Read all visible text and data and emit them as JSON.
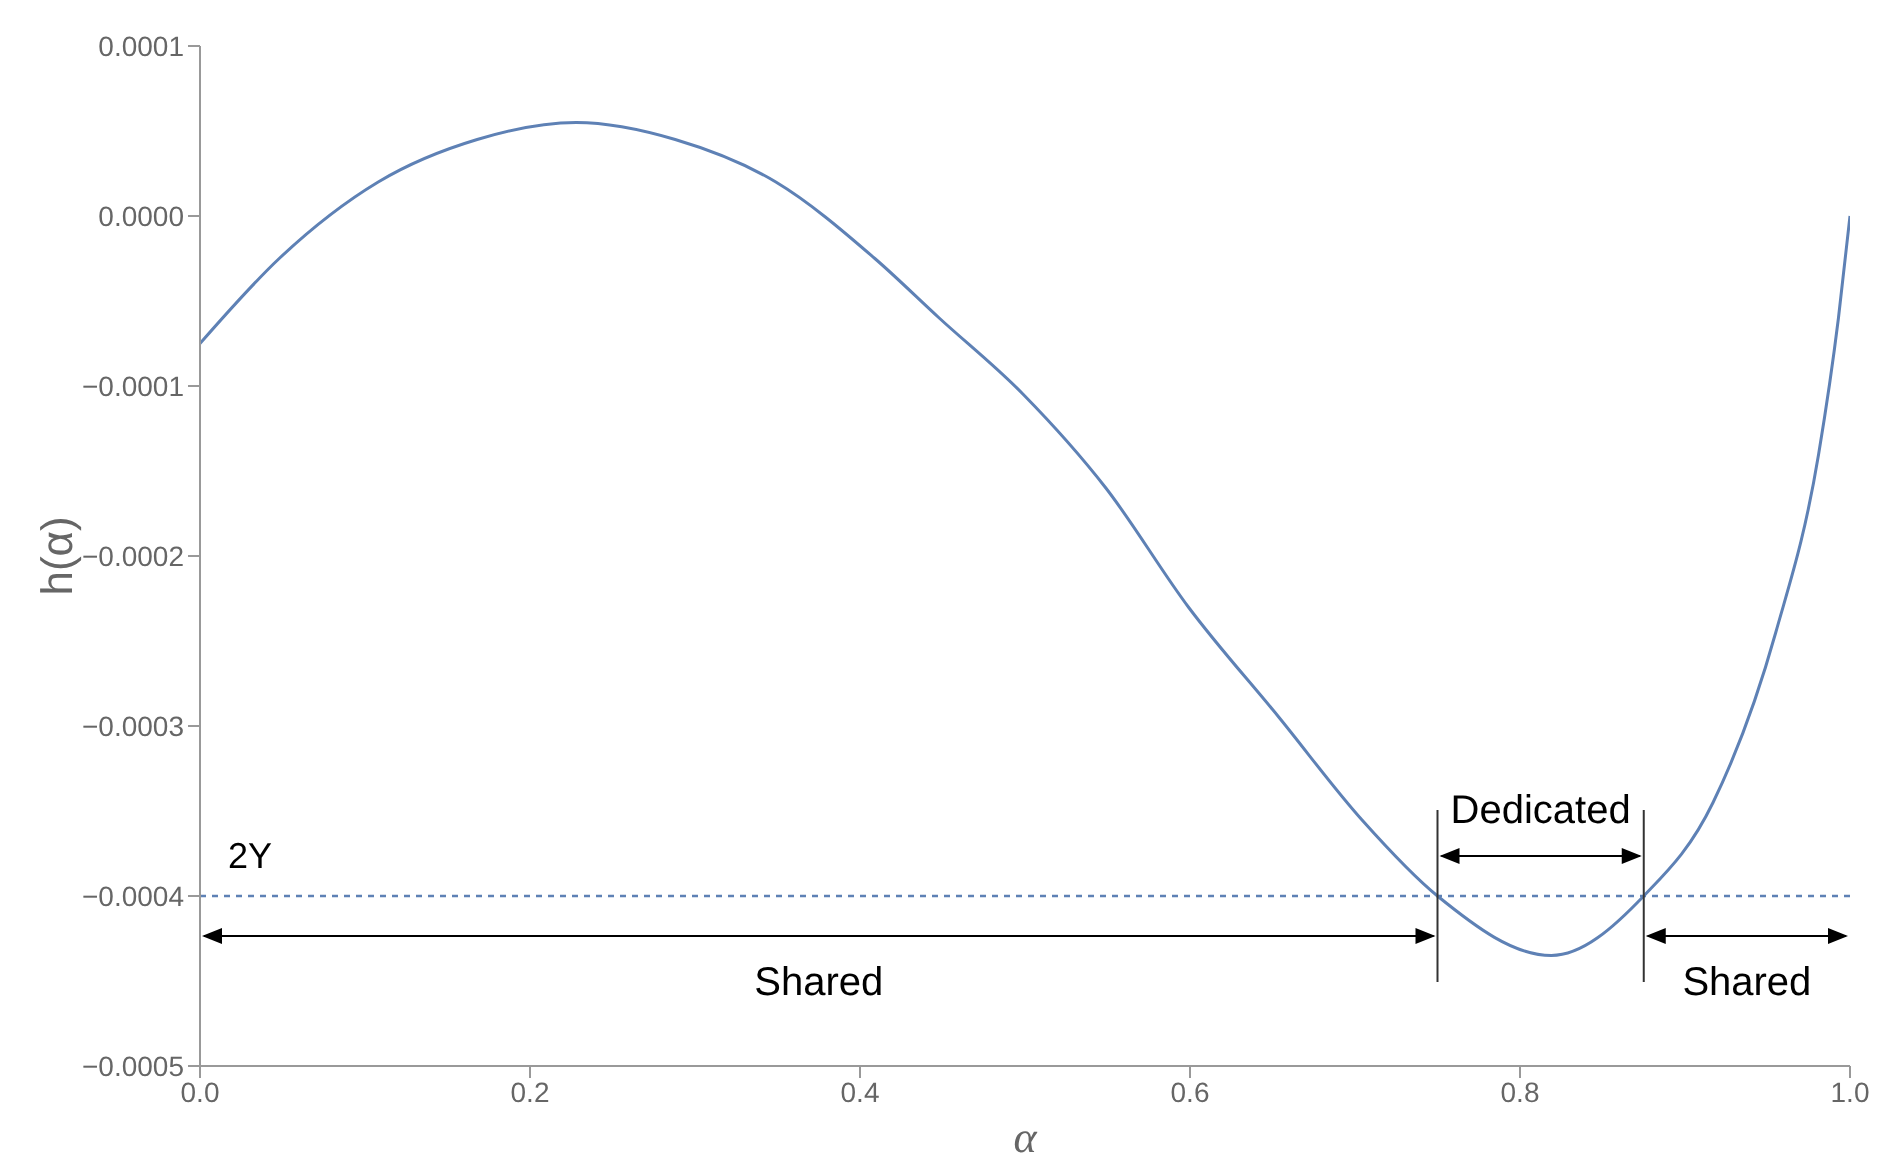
{
  "chart_data": {
    "type": "line",
    "xlabel": "α",
    "ylabel": "h(α)",
    "series": [
      {
        "color": "#5e81b5",
        "x": [
          0,
          0.048,
          0.108,
          0.168,
          0.228,
          0.288,
          0.349,
          0.409,
          0.448,
          0.499,
          0.549,
          0.599,
          0.654,
          0.704,
          0.75,
          0.819,
          0.875,
          0.917,
          0.955,
          0.981,
          0.993,
          1
        ],
        "values": [
          -7.5e-05,
          -2.5e-05,
          2e-05,
          4.5e-05,
          5.5e-05,
          4.5e-05,
          2e-05,
          -2.5e-05,
          -6e-05,
          -0.000105,
          -0.00016,
          -0.00023,
          -0.000295,
          -0.000355,
          -0.0004,
          -0.000435,
          -0.0004,
          -0.000345,
          -0.000245,
          -0.00014,
          -6e-05,
          0
        ]
      }
    ],
    "xlim": [
      0,
      1
    ],
    "xticks": [
      {
        "value": 0,
        "label": "0.0"
      },
      {
        "value": 0.2,
        "label": "0.2"
      },
      {
        "value": 0.4,
        "label": "0.4"
      },
      {
        "value": 0.6,
        "label": "0.6"
      },
      {
        "value": 0.8,
        "label": "0.8"
      },
      {
        "value": 1,
        "label": "1.0"
      }
    ],
    "ylim": [
      -0.0005,
      0.0001
    ],
    "yticks": [
      {
        "value": -0.0005,
        "label": "−0.0005"
      },
      {
        "value": -0.0004,
        "label": "−0.0004"
      },
      {
        "value": -0.0003,
        "label": "−0.0003"
      },
      {
        "value": -0.0002,
        "label": "−0.0002"
      },
      {
        "value": -0.0001,
        "label": "−0.0001"
      },
      {
        "value": 0,
        "label": "0.0000"
      },
      {
        "value": 0.0001,
        "label": "0.0001"
      }
    ],
    "ref_lines": [
      {
        "axis": "y",
        "value": -0.0004,
        "label": "2Y",
        "color": "#5e81b5",
        "line_style": "dotted"
      },
      {
        "axis": "x",
        "value": 0.75,
        "label": null,
        "color": "#333333"
      },
      {
        "axis": "x",
        "value": 0.875,
        "label": null,
        "color": "#333333"
      }
    ],
    "annotations": [
      "Shared",
      "Dedicated",
      "Shared"
    ],
    "marker": "none",
    "line_style": "solid",
    "grid": false
  }
}
